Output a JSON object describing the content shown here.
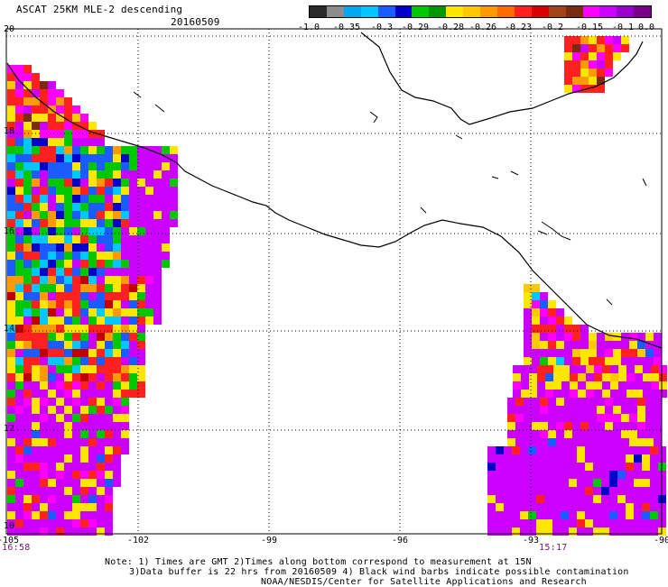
{
  "header": {
    "title": "ASCAT 25KM MLE-2 descending",
    "date": "20160509"
  },
  "colorbar": {
    "colors": [
      "#2a2a2a",
      "#8c8c8c",
      "#00a8f0",
      "#00c8ff",
      "#1a5cff",
      "#0000c8",
      "#00c800",
      "#009800",
      "#ffe600",
      "#ffc800",
      "#ff9a00",
      "#ff6a00",
      "#ff2020",
      "#d80000",
      "#a04418",
      "#7a2a0e",
      "#ff00ff",
      "#cc00ff",
      "#9a00cc",
      "#7a0088"
    ],
    "tick_labels": [
      "-1.0",
      "-0.35",
      "-0.3",
      "-0.29",
      "-0.28",
      "-0.26",
      "-0.23",
      "-0.2",
      "-0.15",
      "-0.1",
      "0.0"
    ]
  },
  "map": {
    "lon_labels": [
      "-105",
      "-102",
      "-99",
      "-96",
      "-93",
      "-90"
    ],
    "lat_labels": [
      "20",
      "18",
      "16",
      "14",
      "12",
      "10"
    ],
    "palette": {
      "magenta": "#cc00ff",
      "purple": "#9a00cc",
      "pink": "#ff00ff",
      "yellow": "#ffe600",
      "gold": "#ffc800",
      "orange": "#ff9a00",
      "red": "#ff2020",
      "darkred": "#c00000",
      "brown": "#7a2a0e",
      "green": "#00c800",
      "blue": "#1a5cff",
      "darkblue": "#0000c8",
      "cyan": "#00c8ff",
      "gray": "#8c8c8c",
      "black": "#2a2a2a"
    }
  },
  "times": {
    "left": "16:58",
    "right": "15:17"
  },
  "footer": {
    "line1": "Note: 1) Times are GMT 2)Times along bottom correspond to measurement at 15N",
    "line2": "3)Data buffer is 22 hrs from 20160509 4) Black wind barbs indicate possible contamination",
    "line3": "NOAA/NESDIS/Center for Satellite Applications and Research"
  }
}
